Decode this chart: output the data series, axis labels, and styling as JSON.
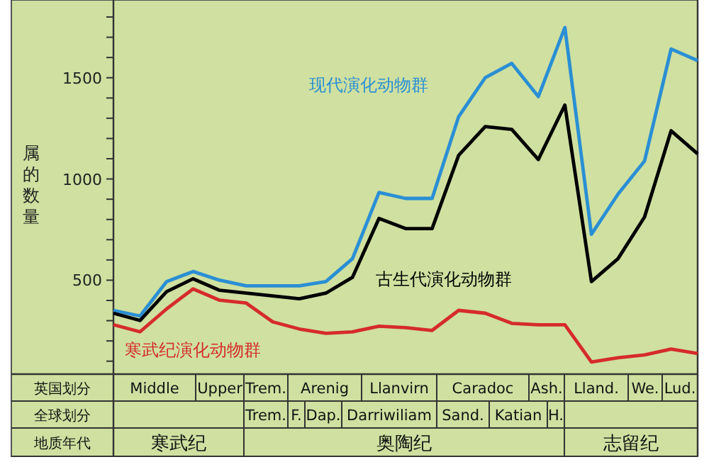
{
  "chart_data": {
    "type": "line",
    "ylabel": "属的数量",
    "categories": [
      null,
      null,
      null,
      null,
      null,
      null,
      null,
      null,
      null,
      null,
      null,
      null,
      null,
      null,
      null,
      null,
      null,
      null,
      null,
      null,
      null,
      null,
      null
    ],
    "ylim": [
      50,
      1870
    ],
    "yticks": [
      {
        "value": 100,
        "label": null
      },
      {
        "value": 200,
        "label": null
      },
      {
        "value": 300,
        "label": null
      },
      {
        "value": 400,
        "label": null
      },
      500,
      {
        "value": 600,
        "label": null
      },
      {
        "value": 700,
        "label": null
      },
      {
        "value": 800,
        "label": null
      },
      {
        "value": 900,
        "label": null
      },
      1000,
      {
        "value": 1100,
        "label": null
      },
      {
        "value": 1200,
        "label": null
      },
      {
        "value": 1300,
        "label": null
      },
      {
        "value": 1400,
        "label": null
      },
      1500,
      {
        "value": 1600,
        "label": null
      },
      {
        "value": 1700,
        "label": null
      },
      {
        "value": 1800,
        "label": null
      }
    ],
    "grid": false,
    "marker": "none",
    "line_style": "solid",
    "series": [
      {
        "name": "现代演化动物群",
        "color": "#2a8fd4",
        "values": [
          351,
          323,
          493,
          543,
          500,
          472,
          472,
          472,
          493,
          606,
          933,
          904,
          904,
          1308,
          1500,
          1571,
          1407,
          1748,
          727,
          925,
          1089,
          1642,
          1585
        ]
      },
      {
        "name": "古生代演化动物群",
        "color": "#000000",
        "values": [
          337,
          301,
          443,
          507,
          450,
          436,
          422,
          408,
          436,
          514,
          805,
          755,
          755,
          1117,
          1259,
          1245,
          1096,
          1365,
          493,
          606,
          812,
          1238,
          1124
        ]
      },
      {
        "name": "寒武纪演化动物群",
        "color": "#d62b2b",
        "values": [
          280,
          245,
          358,
          457,
          401,
          387,
          294,
          259,
          238,
          245,
          273,
          266,
          252,
          351,
          337,
          287,
          280,
          280,
          96,
          117,
          131,
          160,
          138
        ]
      }
    ],
    "annotations": [
      "英国划分",
      "Middle",
      "Upper",
      "Trem.",
      "Arenig",
      "Llanvirn",
      "Caradoc",
      "Ash.",
      "Lland.",
      "We.",
      "Lud.",
      "全球划分",
      "Trem.",
      "F.",
      "Dap.",
      "Darriwiliam",
      "Sand.",
      "Katian",
      "H.",
      "地质年代",
      "寒武纪",
      "奥陶纪",
      "志留纪"
    ]
  }
}
